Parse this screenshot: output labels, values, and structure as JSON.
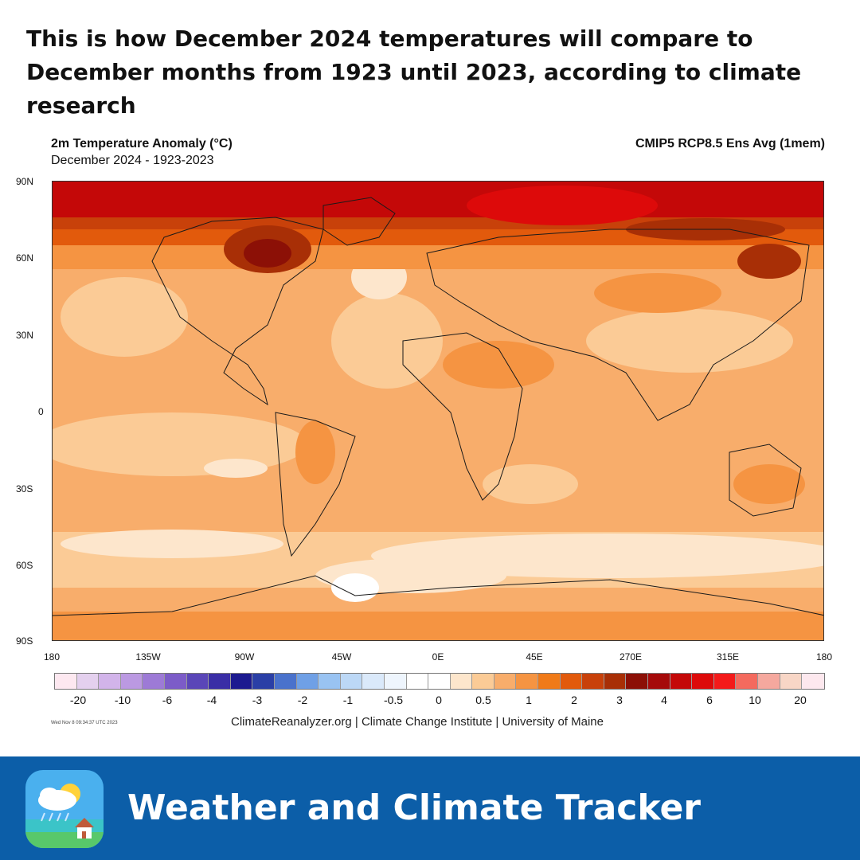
{
  "headline": "This is how December 2024 temperatures will compare to December months from 1923 until 2023, according to climate research",
  "map": {
    "variable_title": "2m Temperature Anomaly (°C)",
    "period": "December 2024 - 1923-2023",
    "model": "CMIP5 RCP8.5 Ens Avg (1mem)",
    "lat_labels": [
      "90N",
      "60N",
      "30N",
      "0",
      "30S",
      "60S",
      "90S"
    ],
    "lon_labels": [
      "180",
      "135W",
      "90W",
      "45W",
      "0E",
      "45E",
      "270E",
      "315E",
      "180"
    ]
  },
  "colorbar": {
    "colors": [
      "#fde8f0",
      "#e4d0ee",
      "#d2b4ea",
      "#bb99e2",
      "#9d7ad6",
      "#7c5cc8",
      "#5a46b8",
      "#3a2ea6",
      "#1c1a90",
      "#2a3fa6",
      "#4a72cc",
      "#6fa0e6",
      "#99c3f2",
      "#bcd8f6",
      "#dae9fa",
      "#eef5fd",
      "#ffffff",
      "#ffffff",
      "#fde6cc",
      "#fbcb96",
      "#f8ad6b",
      "#f59442",
      "#f07a18",
      "#e25a0c",
      "#c8410a",
      "#a82f06",
      "#8c1006",
      "#a50a0a",
      "#c40808",
      "#dd0a0a",
      "#f41a1a",
      "#f46a5e",
      "#f5a89e",
      "#f8d6c6",
      "#fde8ee"
    ],
    "labels": [
      "-20",
      "-10",
      "-6",
      "-4",
      "-3",
      "-2",
      "-1",
      "-0.5",
      "0",
      "0.5",
      "1",
      "2",
      "3",
      "4",
      "6",
      "10",
      "20"
    ]
  },
  "timestamp": "Wed Nov  8 09:34:37 UTC 2023",
  "credit": "ClimateReanalyzer.org | Climate Change Institute | University of Maine",
  "brand": {
    "app_name": "Weather and Climate Tracker",
    "banner_color": "#0c5ea8",
    "icon": "weather-app-icon"
  }
}
